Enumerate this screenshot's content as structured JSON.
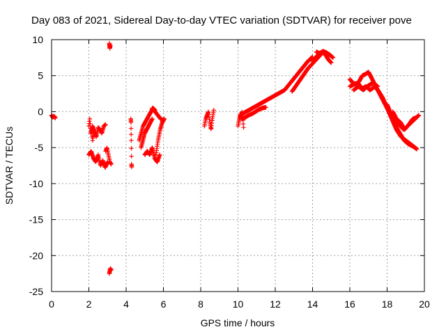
{
  "chart_data": {
    "type": "scatter",
    "title": "Day 083 of 2021, Sidereal Day-to-day VTEC variation (SDTVAR) for receiver pove",
    "xlabel": "GPS time / hours",
    "ylabel": "SDTVAR / TECUs",
    "xlim": [
      0,
      20
    ],
    "ylim": [
      -25,
      10
    ],
    "x_ticks": [
      "0",
      "2",
      "4",
      "6",
      "8",
      "10",
      "12",
      "14",
      "16",
      "18",
      "20"
    ],
    "y_ticks": [
      "10",
      "5",
      "0",
      "-5",
      "-10",
      "-15",
      "-20",
      "-25"
    ],
    "grid": true,
    "marker": "+",
    "color": "#ff0000",
    "series": [
      {
        "name": "SDTVAR",
        "segments": [
          {
            "x0": 0.0,
            "x1": 0.2,
            "y": [
              -0.5,
              -0.8,
              -0.6,
              -0.9
            ]
          },
          {
            "x0": 2.0,
            "x1": 2.25,
            "y": [
              -2.0,
              -1.0,
              -3.0,
              -2.5,
              -4.0,
              -3.0
            ]
          },
          {
            "x0": 2.1,
            "x1": 2.9,
            "y": [
              -3.0,
              -2.0,
              -2.8,
              -3.5,
              -2.2,
              -2.5,
              -3.0,
              -2.0,
              -1.8
            ]
          },
          {
            "x0": 2.0,
            "x1": 3.0,
            "y": [
              -6.0,
              -5.5,
              -6.5,
              -7.0,
              -6.0,
              -7.5,
              -6.8,
              -7.8,
              -7.0
            ]
          },
          {
            "x0": 2.9,
            "x1": 3.2,
            "y": [
              -5.5,
              -5.0,
              -6.0,
              -7.0,
              -7.3
            ]
          },
          {
            "x0": 3.1,
            "x1": 3.15,
            "y": [
              9.5,
              8.8,
              9.2
            ]
          },
          {
            "x0": 3.1,
            "x1": 3.2,
            "y": [
              -22.5,
              -21.8,
              -22.0
            ]
          },
          {
            "x0": 4.25,
            "x1": 4.3,
            "y": [
              -1.0,
              -1.5,
              -4.0,
              -7.3,
              -7.7
            ]
          },
          {
            "x0": 4.7,
            "x1": 5.55,
            "y": [
              -4.0,
              -3.0,
              -2.0,
              -1.5,
              -1.0,
              -0.5,
              0.0,
              0.5,
              0.2
            ]
          },
          {
            "x0": 4.8,
            "x1": 5.4,
            "y": [
              -5.0,
              -4.0,
              -3.0,
              -2.5,
              -2.0,
              -1.5,
              -1.0
            ]
          },
          {
            "x0": 5.0,
            "x1": 5.8,
            "y": [
              -6.0,
              -5.5,
              -6.0,
              -5.0,
              -6.5,
              -7.0,
              -6.0
            ]
          },
          {
            "x0": 5.6,
            "x1": 6.05,
            "y": [
              -6.0,
              -4.0,
              -2.5,
              -1.5,
              -1.0
            ]
          },
          {
            "x0": 5.4,
            "x1": 6.0,
            "y": [
              0.5,
              0.0,
              -0.5,
              -1.0,
              -1.2
            ]
          },
          {
            "x0": 8.2,
            "x1": 8.7,
            "y": [
              -2.0,
              -1.0,
              -0.5,
              0.0,
              -1.5,
              -2.5,
              -1.0,
              0.2
            ]
          },
          {
            "x0": 10.0,
            "x1": 10.3,
            "y": [
              -2.0,
              -1.0,
              -0.5,
              0.0,
              -2.2
            ]
          },
          {
            "x0": 10.2,
            "x1": 11.5,
            "y": [
              -1.0,
              -0.8,
              -0.5,
              -0.3,
              0.0,
              0.3,
              0.5,
              0.6
            ]
          },
          {
            "x0": 10.1,
            "x1": 12.5,
            "y": [
              -0.5,
              0.0,
              0.5,
              1.0,
              1.5,
              2.0,
              2.5,
              3.0
            ]
          },
          {
            "x0": 12.5,
            "x1": 14.0,
            "y": [
              3.0,
              3.8,
              4.6,
              5.4,
              6.2,
              7.0,
              7.6
            ]
          },
          {
            "x0": 12.9,
            "x1": 14.4,
            "y": [
              2.8,
              3.6,
              4.4,
              5.2,
              6.0,
              6.6,
              7.2,
              7.8
            ]
          },
          {
            "x0": 14.0,
            "x1": 15.0,
            "y": [
              7.0,
              7.5,
              7.8,
              8.0,
              8.2,
              7.8,
              7.2,
              6.8
            ]
          },
          {
            "x0": 14.2,
            "x1": 15.1,
            "y": [
              8.3,
              8.1,
              8.4,
              8.2,
              7.9,
              7.5
            ]
          },
          {
            "x0": 16.0,
            "x1": 17.0,
            "y": [
              4.5,
              4.0,
              3.8,
              4.2,
              5.0,
              5.2,
              5.5
            ]
          },
          {
            "x0": 16.0,
            "x1": 17.3,
            "y": [
              3.5,
              3.8,
              4.0,
              3.2,
              3.5,
              3.0,
              3.4
            ]
          },
          {
            "x0": 16.2,
            "x1": 17.5,
            "y": [
              3.0,
              3.5,
              3.0,
              3.6,
              4.0,
              3.5
            ]
          },
          {
            "x0": 17.0,
            "x1": 18.0,
            "y": [
              5.5,
              4.5,
              3.5,
              2.5,
              1.5,
              0.5
            ]
          },
          {
            "x0": 17.3,
            "x1": 18.5,
            "y": [
              3.5,
              3.0,
              2.0,
              1.0,
              0.0,
              -1.0,
              -2.0
            ]
          },
          {
            "x0": 17.5,
            "x1": 19.5,
            "y": [
              3.0,
              2.0,
              0.5,
              -1.0,
              -2.5,
              -3.5,
              -4.0,
              -4.5,
              -5.0
            ]
          },
          {
            "x0": 18.0,
            "x1": 19.6,
            "y": [
              1.0,
              -0.5,
              -2.0,
              -3.0,
              -4.0,
              -4.5,
              -4.8,
              -5.2
            ]
          },
          {
            "x0": 18.3,
            "x1": 19.7,
            "y": [
              0.0,
              -1.0,
              -2.0,
              -2.5,
              -2.0,
              -1.5,
              -1.0,
              -0.5
            ]
          },
          {
            "x0": 18.5,
            "x1": 19.6,
            "y": [
              -1.0,
              -1.5,
              -2.5,
              -1.8,
              -1.0,
              -0.8
            ]
          }
        ]
      }
    ]
  }
}
